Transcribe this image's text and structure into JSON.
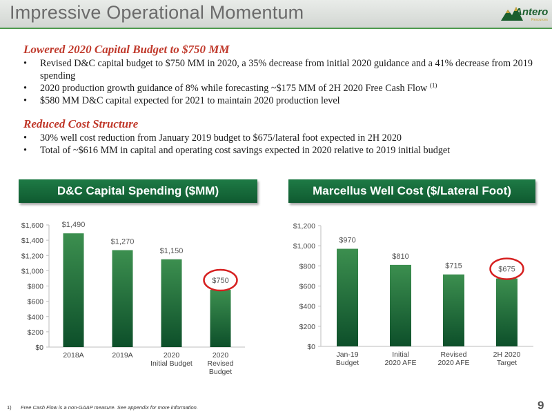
{
  "header": {
    "title": "Impressive Operational Momentum",
    "logo_text": "Antero",
    "logo_sub": "Resources",
    "accent_color": "#1b6b3a",
    "highlight_color": "#c0392b"
  },
  "section1": {
    "heading": "Lowered 2020 Capital Budget to $750 MM",
    "bullets": [
      "Revised D&C capital budget to $750 MM in 2020, a 35% decrease from initial 2020 guidance and a 41% decrease from 2019 spending",
      "2020 production growth guidance of 8% while forecasting ~$175 MM of 2H 2020 Free Cash Flow",
      "$580 MM D&C capital expected for 2021 to maintain 2020 production level"
    ],
    "bullet2_superscript": "(1)"
  },
  "section2": {
    "heading": "Reduced Cost Structure",
    "bullets": [
      "30% well cost reduction from January 2019 budget to $675/lateral foot expected in 2H 2020",
      "Total of ~$616 MM in capital and operating cost savings expected in 2020 relative to 2019 initial budget"
    ]
  },
  "chart_data": [
    {
      "type": "bar",
      "title": "D&C Capital Spending ($MM)",
      "categories": [
        "2018A",
        "2019A",
        "2020\nInitial Budget",
        "2020\nRevised\nBudget"
      ],
      "values": [
        1490,
        1270,
        1150,
        750
      ],
      "value_labels": [
        "$1,490",
        "$1,270",
        "$1,150",
        "$750"
      ],
      "ylim": [
        0,
        1600
      ],
      "yticks": [
        0,
        200,
        400,
        600,
        800,
        1000,
        1200,
        1400,
        1600
      ],
      "ytick_labels": [
        "$0",
        "$200",
        "$400",
        "$600",
        "$800",
        "$1,000",
        "$1,200",
        "$1,400",
        "$1,600"
      ],
      "highlight_index": 3,
      "grid": false,
      "bar_color": "#1b6b3a"
    },
    {
      "type": "bar",
      "title": "Marcellus Well Cost ($/Lateral Foot)",
      "categories": [
        "Jan-19\nBudget",
        "Initial\n2020 AFE",
        "Revised\n2020 AFE",
        "2H 2020\nTarget"
      ],
      "values": [
        970,
        810,
        715,
        675
      ],
      "value_labels": [
        "$970",
        "$810",
        "$715",
        "$675"
      ],
      "ylim": [
        0,
        1200
      ],
      "yticks": [
        0,
        200,
        400,
        600,
        800,
        1000,
        1200
      ],
      "ytick_labels": [
        "$0",
        "$200",
        "$400",
        "$600",
        "$800",
        "$1,000",
        "$1,200"
      ],
      "highlight_index": 3,
      "grid": false,
      "bar_color": "#1b6b3a"
    }
  ],
  "footnote": {
    "number": "1)",
    "text": "Free Cash Flow is a non-GAAP measure.  See appendix for more information."
  },
  "page_number": "9"
}
